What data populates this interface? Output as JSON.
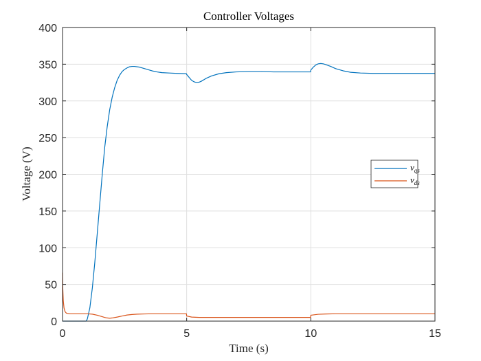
{
  "chart_data": {
    "type": "line",
    "title": "Controller Voltages",
    "xlabel": "Time (s)",
    "ylabel": "Voltage (V)",
    "xlim": [
      0,
      15
    ],
    "ylim": [
      0,
      400
    ],
    "xticks": [
      0,
      5,
      10,
      15
    ],
    "yticks": [
      0,
      50,
      100,
      150,
      200,
      250,
      300,
      350,
      400
    ],
    "grid": true,
    "legend_position": "right",
    "series": [
      {
        "name": "v_qs",
        "label_main": "v",
        "label_sub": "qs",
        "color": "#0072BD",
        "x": [
          0,
          0.95,
          1.0,
          1.1,
          1.2,
          1.3,
          1.4,
          1.5,
          1.6,
          1.7,
          1.8,
          1.9,
          2.0,
          2.1,
          2.2,
          2.3,
          2.4,
          2.5,
          2.6,
          2.7,
          2.8,
          2.9,
          3.0,
          3.1,
          3.2,
          3.4,
          3.6,
          3.8,
          4.0,
          4.3,
          4.6,
          4.99,
          5.0,
          5.1,
          5.2,
          5.3,
          5.4,
          5.5,
          5.6,
          5.8,
          6.0,
          6.3,
          6.6,
          7.0,
          7.5,
          8.0,
          8.5,
          9.0,
          9.5,
          9.99,
          10.0,
          10.1,
          10.2,
          10.3,
          10.4,
          10.5,
          10.6,
          10.8,
          11.0,
          11.3,
          11.6,
          12.0,
          12.5,
          13.0,
          14.0,
          15.0
        ],
        "y": [
          0,
          0,
          3,
          18,
          45,
          80,
          120,
          160,
          200,
          237,
          265,
          288,
          305,
          318,
          328,
          335,
          340,
          343,
          345,
          346.5,
          347,
          347,
          346.5,
          346,
          345,
          343,
          341,
          339.5,
          338.5,
          338,
          337.5,
          337,
          336,
          332,
          328,
          326,
          325,
          325.5,
          327,
          331,
          334,
          337,
          338.5,
          339.5,
          340,
          340,
          339.5,
          339.5,
          339.5,
          339.5,
          342,
          346,
          349,
          350.5,
          351,
          350.5,
          349.5,
          347,
          344,
          341,
          339,
          338,
          337.5,
          337.5,
          337.5,
          337.5
        ]
      },
      {
        "name": "v_ds",
        "label_main": "v",
        "label_sub": "ds",
        "color": "#D95319",
        "x": [
          0,
          0.01,
          0.03,
          0.06,
          0.1,
          0.15,
          0.2,
          0.3,
          0.5,
          0.8,
          1.0,
          1.2,
          1.4,
          1.6,
          1.7,
          1.8,
          1.9,
          2.0,
          2.2,
          2.4,
          2.6,
          2.8,
          3.0,
          3.3,
          3.6,
          4.0,
          4.5,
          4.99,
          5.0,
          5.2,
          5.5,
          6.0,
          7.0,
          8.0,
          9.0,
          9.99,
          10.0,
          10.3,
          10.6,
          11.0,
          12.0,
          13.0,
          14.0,
          15.0
        ],
        "y": [
          66,
          45,
          28,
          18,
          13,
          11,
          10.5,
          10,
          10,
          10,
          10,
          9.5,
          8,
          6,
          5,
          4.3,
          4,
          4.3,
          5.5,
          7,
          8.3,
          9,
          9.5,
          9.8,
          10,
          10,
          10,
          10,
          7,
          5.5,
          5,
          5,
          5,
          5,
          5,
          5,
          8,
          9.3,
          9.7,
          10,
          10,
          10,
          10,
          10
        ]
      }
    ]
  }
}
